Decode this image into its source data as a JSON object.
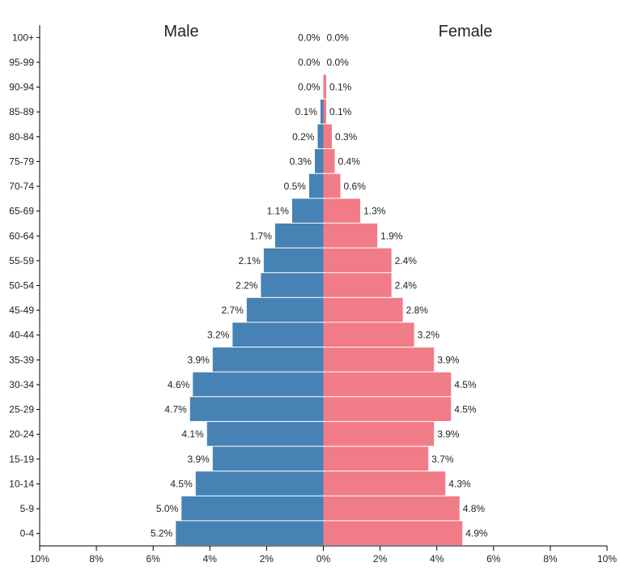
{
  "chart_data": {
    "type": "bar",
    "title": "",
    "xlabel": "",
    "ylabel": "",
    "legend": "none",
    "grid": false,
    "xlim": [
      -10,
      10
    ],
    "side_titles": {
      "left": "Male",
      "right": "Female"
    },
    "colors": {
      "male": "#4682b4",
      "female": "#f07c88",
      "axis": "#000000",
      "text": "#222222"
    },
    "x_ticks": [
      -10,
      -8,
      -6,
      -4,
      -2,
      0,
      2,
      4,
      6,
      8,
      10
    ],
    "x_tick_labels": [
      "10%",
      "8%",
      "6%",
      "4%",
      "2%",
      "0%",
      "2%",
      "4%",
      "6%",
      "8%",
      "10%"
    ],
    "categories": [
      "100+",
      "95-99",
      "90-94",
      "85-89",
      "80-84",
      "75-79",
      "70-74",
      "65-69",
      "60-64",
      "55-59",
      "50-54",
      "45-49",
      "40-44",
      "35-39",
      "30-34",
      "25-29",
      "20-24",
      "15-19",
      "10-14",
      "5-9",
      "0-4"
    ],
    "series": [
      {
        "name": "Male",
        "values": [
          0.0,
          0.0,
          0.0,
          0.1,
          0.2,
          0.3,
          0.5,
          1.1,
          1.7,
          2.1,
          2.2,
          2.7,
          3.2,
          3.9,
          4.6,
          4.7,
          4.1,
          3.9,
          4.5,
          5.0,
          5.2
        ],
        "labels": [
          "0.0%",
          "0.0%",
          "0.0%",
          "0.1%",
          "0.2%",
          "0.3%",
          "0.5%",
          "1.1%",
          "1.7%",
          "2.1%",
          "2.2%",
          "2.7%",
          "3.2%",
          "3.9%",
          "4.6%",
          "4.7%",
          "4.1%",
          "3.9%",
          "4.5%",
          "5.0%",
          "5.2%"
        ]
      },
      {
        "name": "Female",
        "values": [
          0.0,
          0.0,
          0.1,
          0.1,
          0.3,
          0.4,
          0.6,
          1.3,
          1.9,
          2.4,
          2.4,
          2.8,
          3.2,
          3.9,
          4.5,
          4.5,
          3.9,
          3.7,
          4.3,
          4.8,
          4.9
        ],
        "labels": [
          "0.0%",
          "0.0%",
          "0.1%",
          "0.1%",
          "0.3%",
          "0.4%",
          "0.6%",
          "1.3%",
          "1.9%",
          "2.4%",
          "2.4%",
          "2.8%",
          "3.2%",
          "3.9%",
          "4.5%",
          "4.5%",
          "3.9%",
          "3.7%",
          "4.3%",
          "4.8%",
          "4.9%"
        ]
      }
    ]
  }
}
